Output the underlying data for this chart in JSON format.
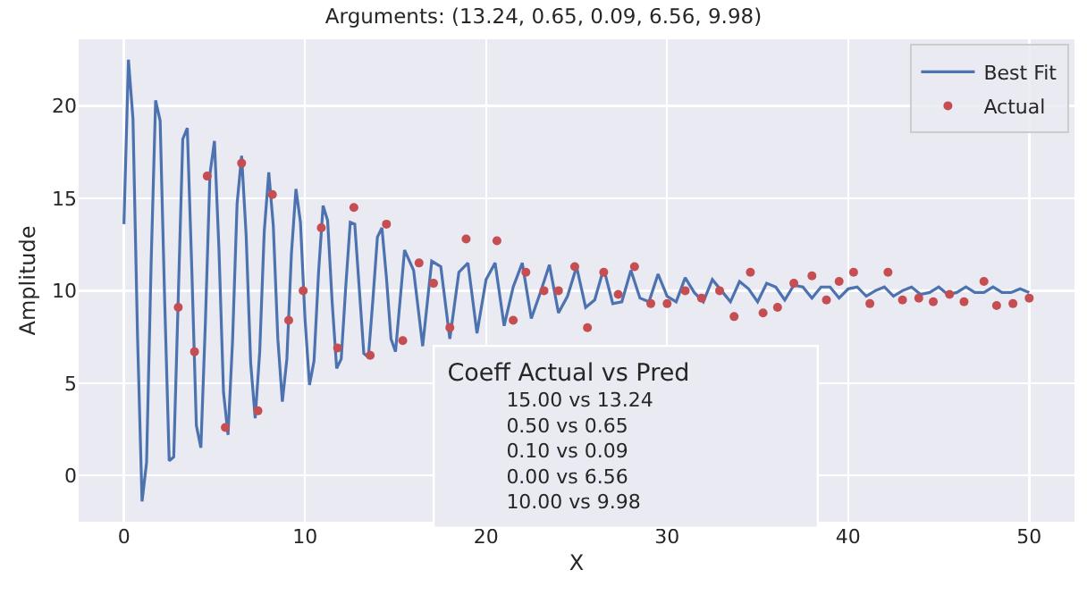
{
  "chart_data": {
    "type": "line",
    "title": "Arguments: (13.24, 0.65, 0.09, 6.56, 9.98)",
    "xlabel": "X",
    "ylabel": "Amplitude",
    "xlim": [
      -2.5,
      52.5
    ],
    "xticks": [
      0,
      10,
      20,
      30,
      40,
      50
    ],
    "ylim": [
      -2.5,
      23.6
    ],
    "yticks": [
      0,
      5,
      10,
      15,
      20
    ],
    "grid": true,
    "legend": "top right",
    "annotations": [
      "Coeff Actual vs Pred",
      "15.00 vs 13.24",
      "0.50 vs 0.65",
      "0.10 vs 0.09",
      "0.00 vs 6.56",
      "10.00 vs 9.98"
    ],
    "series": [
      {
        "name": "Best Fit",
        "color": "#4c72b0",
        "line_style": "solid",
        "x": [
          0,
          0.25,
          0.5,
          0.75,
          1,
          1.25,
          1.5,
          1.75,
          2,
          2.25,
          2.5,
          2.75,
          3,
          3.25,
          3.5,
          3.75,
          4,
          4.25,
          4.5,
          4.75,
          5,
          5.25,
          5.5,
          5.75,
          6,
          6.25,
          6.5,
          6.75,
          7,
          7.25,
          7.5,
          7.75,
          8,
          8.25,
          8.5,
          8.75,
          9,
          9.25,
          9.5,
          9.75,
          10,
          10.25,
          10.5,
          10.75,
          11,
          11.25,
          11.5,
          11.75,
          12,
          12.25,
          12.5,
          12.75,
          13,
          13.25,
          13.5,
          13.75,
          14,
          14.25,
          14.5,
          14.75,
          15,
          15.5,
          16,
          16.5,
          17,
          17.5,
          18,
          18.5,
          19,
          19.5,
          20,
          20.5,
          21,
          21.5,
          22,
          22.5,
          23,
          23.5,
          24,
          24.5,
          25,
          25.5,
          26,
          26.5,
          27,
          27.5,
          28,
          28.5,
          29,
          29.5,
          30,
          30.5,
          31,
          31.5,
          32,
          32.5,
          33,
          33.5,
          34,
          34.5,
          35,
          35.5,
          36,
          36.5,
          37,
          37.5,
          38,
          38.5,
          39,
          39.5,
          40,
          40.5,
          41,
          41.5,
          42,
          42.5,
          43,
          43.5,
          44,
          44.5,
          45,
          45.5,
          46,
          46.5,
          47,
          47.5,
          48,
          48.5,
          49,
          49.5,
          50
        ],
        "values": [
          13.6,
          22.5,
          19.3,
          7.6,
          -1.4,
          0.7,
          11.4,
          20.3,
          19.2,
          9.5,
          0.8,
          1.0,
          9.6,
          18.2,
          18.8,
          11.1,
          2.7,
          1.5,
          8.3,
          16.3,
          18.1,
          12.2,
          4.5,
          2.2,
          7.3,
          14.7,
          17.3,
          13.0,
          6.1,
          3.1,
          6.7,
          13.2,
          16.4,
          13.5,
          7.4,
          4.0,
          6.3,
          12.0,
          15.5,
          13.7,
          8.5,
          4.9,
          6.2,
          11.0,
          14.6,
          13.8,
          9.4,
          5.8,
          6.3,
          10.2,
          13.7,
          13.6,
          10.1,
          6.6,
          6.4,
          9.5,
          12.9,
          13.4,
          10.7,
          7.4,
          6.7,
          12.2,
          11.1,
          7.0,
          11.6,
          11.3,
          7.4,
          11.0,
          11.5,
          7.7,
          10.6,
          11.5,
          8.1,
          10.2,
          11.5,
          8.5,
          9.9,
          11.4,
          8.8,
          9.7,
          11.3,
          9.1,
          9.5,
          11.2,
          9.3,
          9.4,
          11.1,
          9.6,
          9.4,
          10.9,
          9.7,
          9.4,
          10.7,
          9.9,
          9.4,
          10.6,
          10.0,
          9.4,
          10.5,
          10.1,
          9.4,
          10.4,
          10.2,
          9.5,
          10.3,
          10.2,
          9.6,
          10.2,
          10.2,
          9.6,
          10.1,
          10.2,
          9.7,
          10.0,
          10.2,
          9.7,
          10.0,
          10.2,
          9.8,
          9.9,
          10.2,
          9.8,
          9.9,
          10.2,
          9.9,
          9.9,
          10.2,
          9.9,
          9.9,
          10.1,
          9.9
        ]
      },
      {
        "name": "Actual",
        "type": "scatter",
        "color": "#c44e52",
        "marker": "circle",
        "x": [
          3.0,
          3.9,
          4.6,
          5.6,
          6.5,
          7.4,
          8.2,
          9.1,
          9.9,
          10.9,
          11.8,
          12.7,
          13.6,
          14.5,
          15.4,
          16.3,
          17.1,
          18.0,
          18.9,
          20.6,
          21.5,
          22.2,
          23.2,
          24.0,
          24.9,
          25.6,
          26.5,
          27.3,
          28.2,
          29.1,
          30.0,
          31.0,
          31.9,
          32.9,
          33.7,
          34.6,
          35.3,
          36.1,
          37.0,
          38.0,
          38.8,
          39.5,
          40.3,
          41.2,
          42.2,
          43.0,
          43.9,
          44.7,
          45.6,
          46.4,
          47.5,
          48.2,
          49.1,
          50.0
        ],
        "values": [
          9.1,
          6.7,
          16.2,
          2.6,
          16.9,
          3.5,
          15.2,
          8.4,
          10.0,
          13.4,
          6.9,
          14.5,
          6.5,
          13.6,
          7.3,
          11.5,
          10.4,
          8.0,
          12.8,
          12.7,
          8.4,
          11.0,
          10.0,
          10.0,
          11.3,
          8.0,
          11.0,
          9.8,
          11.3,
          9.3,
          9.3,
          10.0,
          9.6,
          10.0,
          8.6,
          11.0,
          8.8,
          9.1,
          10.4,
          10.8,
          9.5,
          10.5,
          11.0,
          9.3,
          11.0,
          9.5,
          9.6,
          9.4,
          9.8,
          9.4,
          10.5,
          9.2,
          9.3,
          9.6
        ]
      }
    ]
  }
}
